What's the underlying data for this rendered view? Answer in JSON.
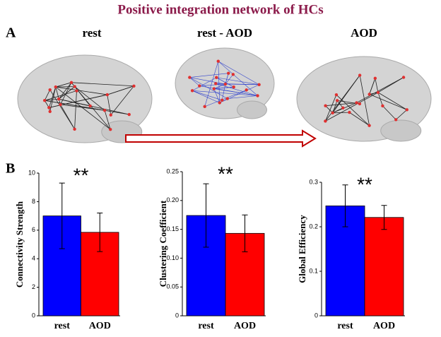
{
  "title": "Positive integration network of HCs",
  "panel_a": {
    "label": "A",
    "brains": [
      "rest",
      "rest - AOD",
      "AOD"
    ]
  },
  "panel_b": {
    "label": "B"
  },
  "chart_data": [
    {
      "type": "bar",
      "ylabel": "Connectivity Strength",
      "categories": [
        "rest",
        "AOD"
      ],
      "values": [
        7.0,
        5.85
      ],
      "errors": [
        2.3,
        1.35
      ],
      "colors": [
        "#0000ff",
        "#ff0000"
      ],
      "ylim": [
        0,
        10
      ],
      "yticks": [
        0,
        2,
        4,
        6,
        8,
        10
      ],
      "annotation": "**"
    },
    {
      "type": "bar",
      "ylabel": "Clustering Coefficient",
      "categories": [
        "rest",
        "AOD"
      ],
      "values": [
        0.174,
        0.143
      ],
      "errors": [
        0.055,
        0.032
      ],
      "colors": [
        "#0000ff",
        "#ff0000"
      ],
      "ylim": [
        0,
        0.25
      ],
      "yticks": [
        0,
        0.05,
        {
          "value": 0.1,
          "label": "0.10"
        },
        0.15,
        {
          "value": 0.2,
          "label": "0.20"
        },
        0.25
      ],
      "annotation": "**"
    },
    {
      "type": "bar",
      "ylabel": "Global Efficiency",
      "categories": [
        "rest",
        "AOD"
      ],
      "values": [
        0.247,
        0.221
      ],
      "errors": [
        0.047,
        0.027
      ],
      "colors": [
        "#0000ff",
        "#ff0000"
      ],
      "ylim": [
        0,
        0.3
      ],
      "yticks": [
        0,
        0.1,
        0.2,
        0.3
      ],
      "annotation": "**"
    }
  ]
}
